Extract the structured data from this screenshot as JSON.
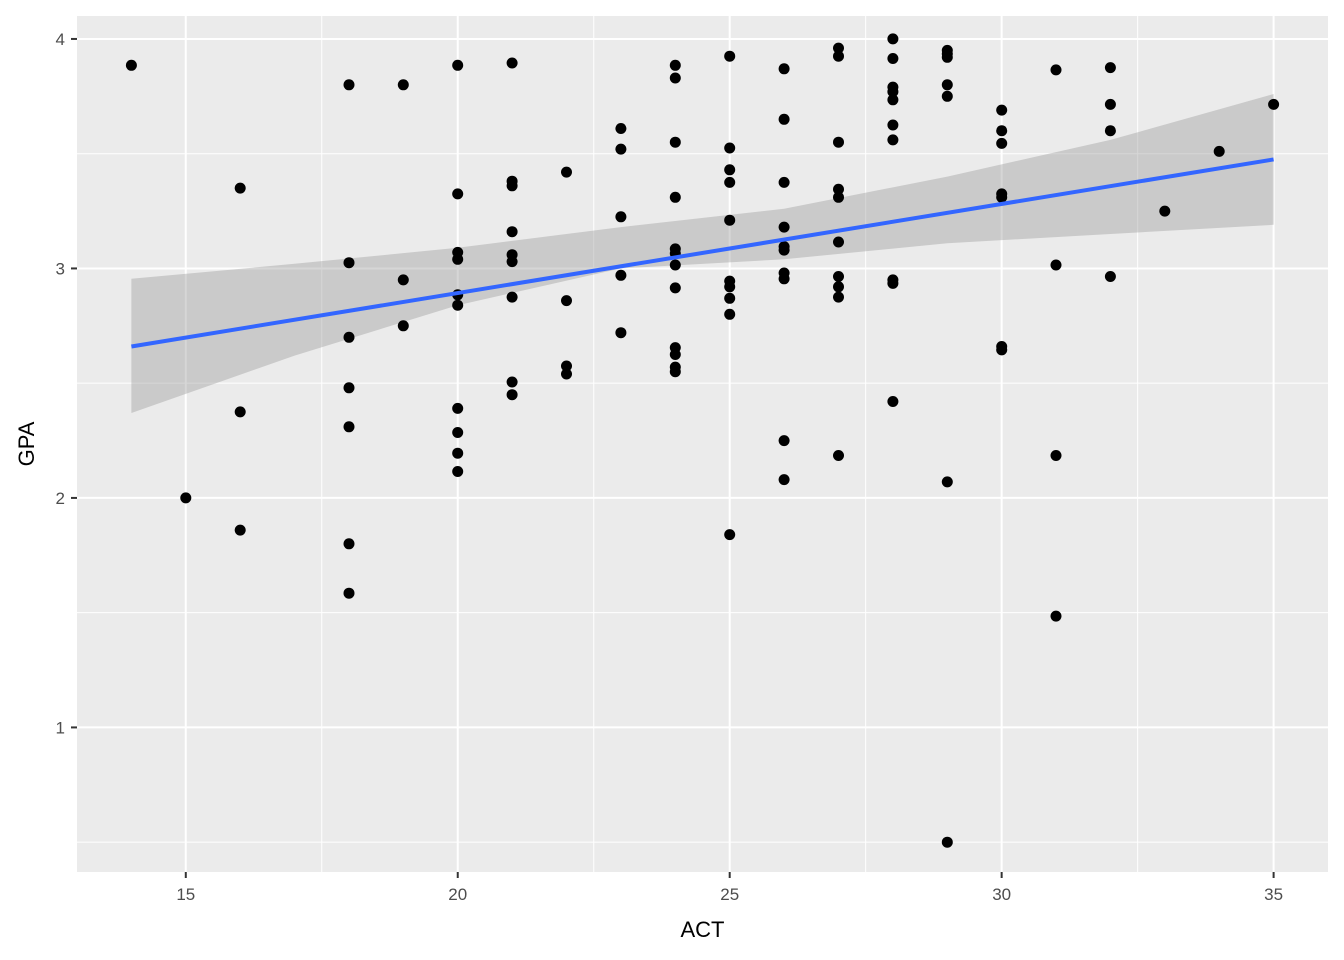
{
  "chart_data": {
    "type": "scatter",
    "title": "",
    "xlabel": "ACT",
    "ylabel": "GPA",
    "xlim": [
      13,
      36
    ],
    "ylim": [
      0.37,
      4.1
    ],
    "x_ticks": [
      15,
      20,
      25,
      30,
      35
    ],
    "x_tick_labels": [
      "15",
      "20",
      "25",
      "30",
      "35"
    ],
    "y_ticks": [
      1,
      2,
      3,
      4
    ],
    "y_tick_labels": [
      "1",
      "2",
      "3",
      "4"
    ],
    "grid": true,
    "legend": "none",
    "colors": {
      "panel_background": "#ebebeb",
      "grid": "#ffffff",
      "points": "#000000",
      "fit_line": "#3366ff",
      "confidence_band": "#999999"
    },
    "points": [
      [
        14,
        3.885
      ],
      [
        15,
        2.0
      ],
      [
        16,
        3.35
      ],
      [
        16,
        2.375
      ],
      [
        16,
        1.86
      ],
      [
        18,
        3.8
      ],
      [
        18,
        3.025
      ],
      [
        18,
        2.7
      ],
      [
        18,
        2.48
      ],
      [
        18,
        2.31
      ],
      [
        18,
        1.8
      ],
      [
        18,
        1.585
      ],
      [
        19,
        3.8
      ],
      [
        19,
        2.95
      ],
      [
        19,
        2.75
      ],
      [
        20,
        3.885
      ],
      [
        20,
        3.325
      ],
      [
        20,
        3.07
      ],
      [
        20,
        3.04
      ],
      [
        20,
        2.885
      ],
      [
        20,
        2.84
      ],
      [
        20,
        2.39
      ],
      [
        20,
        2.285
      ],
      [
        20,
        2.195
      ],
      [
        20,
        2.115
      ],
      [
        21,
        3.895
      ],
      [
        21,
        3.38
      ],
      [
        21,
        3.36
      ],
      [
        21,
        3.16
      ],
      [
        21,
        3.06
      ],
      [
        21,
        3.03
      ],
      [
        21,
        2.875
      ],
      [
        21,
        2.505
      ],
      [
        21,
        2.45
      ],
      [
        22,
        3.42
      ],
      [
        22,
        2.86
      ],
      [
        22,
        2.575
      ],
      [
        22,
        2.54
      ],
      [
        23,
        3.61
      ],
      [
        23,
        3.52
      ],
      [
        23,
        3.225
      ],
      [
        23,
        2.97
      ],
      [
        23,
        2.72
      ],
      [
        24,
        3.885
      ],
      [
        24,
        3.83
      ],
      [
        24,
        3.55
      ],
      [
        24,
        3.31
      ],
      [
        24,
        3.085
      ],
      [
        24,
        3.065
      ],
      [
        24,
        3.015
      ],
      [
        24,
        2.915
      ],
      [
        24,
        2.655
      ],
      [
        24,
        2.625
      ],
      [
        24,
        2.57
      ],
      [
        24,
        2.55
      ],
      [
        25,
        3.925
      ],
      [
        25,
        3.525
      ],
      [
        25,
        3.43
      ],
      [
        25,
        3.375
      ],
      [
        25,
        3.21
      ],
      [
        25,
        2.945
      ],
      [
        25,
        2.92
      ],
      [
        25,
        2.87
      ],
      [
        25,
        2.8
      ],
      [
        25,
        1.84
      ],
      [
        26,
        3.87
      ],
      [
        26,
        3.65
      ],
      [
        26,
        3.375
      ],
      [
        26,
        3.18
      ],
      [
        26,
        3.095
      ],
      [
        26,
        3.08
      ],
      [
        26,
        2.98
      ],
      [
        26,
        2.955
      ],
      [
        26,
        2.25
      ],
      [
        26,
        2.08
      ],
      [
        27,
        3.96
      ],
      [
        27,
        3.925
      ],
      [
        27,
        3.55
      ],
      [
        27,
        3.345
      ],
      [
        27,
        3.31
      ],
      [
        27,
        3.115
      ],
      [
        27,
        2.965
      ],
      [
        27,
        2.92
      ],
      [
        27,
        2.875
      ],
      [
        27,
        2.185
      ],
      [
        28,
        4.0
      ],
      [
        28,
        3.915
      ],
      [
        28,
        3.79
      ],
      [
        28,
        3.77
      ],
      [
        28,
        3.735
      ],
      [
        28,
        3.625
      ],
      [
        28,
        3.56
      ],
      [
        28,
        2.95
      ],
      [
        28,
        2.935
      ],
      [
        28,
        2.42
      ],
      [
        29,
        3.95
      ],
      [
        29,
        3.935
      ],
      [
        29,
        3.92
      ],
      [
        29,
        3.8
      ],
      [
        29,
        3.75
      ],
      [
        29,
        2.07
      ],
      [
        29,
        0.5
      ],
      [
        30,
        3.69
      ],
      [
        30,
        3.6
      ],
      [
        30,
        3.545
      ],
      [
        30,
        3.325
      ],
      [
        30,
        3.31
      ],
      [
        30,
        2.66
      ],
      [
        30,
        2.645
      ],
      [
        31,
        3.865
      ],
      [
        31,
        3.015
      ],
      [
        31,
        2.185
      ],
      [
        31,
        1.485
      ],
      [
        32,
        3.875
      ],
      [
        32,
        3.715
      ],
      [
        32,
        3.6
      ],
      [
        32,
        2.965
      ],
      [
        33,
        3.25
      ],
      [
        34,
        3.51
      ],
      [
        35,
        3.715
      ]
    ],
    "fit_line": {
      "x": [
        14,
        35
      ],
      "y": [
        2.66,
        3.475
      ]
    },
    "confidence_band": [
      {
        "x": 14,
        "lower": 2.37,
        "upper": 2.955
      },
      {
        "x": 17,
        "lower": 2.62,
        "upper": 3.02
      },
      {
        "x": 20,
        "lower": 2.84,
        "upper": 3.09
      },
      {
        "x": 23,
        "lower": 3.0,
        "upper": 3.18
      },
      {
        "x": 26,
        "lower": 3.04,
        "upper": 3.26
      },
      {
        "x": 29,
        "lower": 3.11,
        "upper": 3.4
      },
      {
        "x": 32,
        "lower": 3.15,
        "upper": 3.56
      },
      {
        "x": 35,
        "lower": 3.19,
        "upper": 3.76
      }
    ]
  }
}
